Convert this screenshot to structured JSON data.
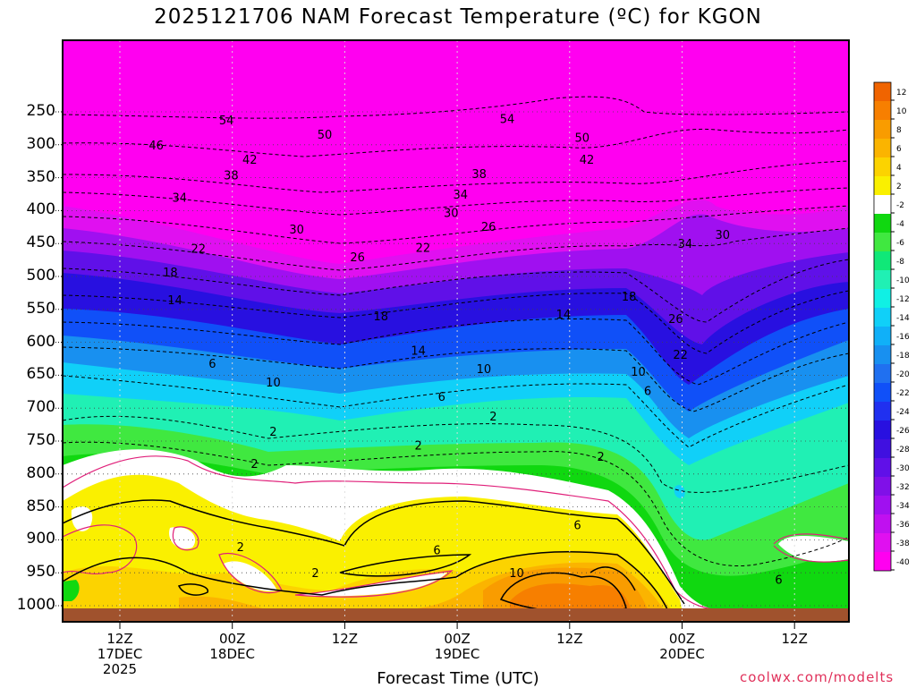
{
  "title": "2025121706 NAM Forecast Temperature (ºC) for KGON",
  "xlabel": "Forecast Time (UTC)",
  "credit": "coolwx.com/modelts",
  "chart_data": {
    "type": "contour",
    "title": "2025121706 NAM Forecast Temperature (ºC) for KGON",
    "xlabel": "Forecast Time (UTC)",
    "ylabel": "",
    "y_axis": "pressure (hPa), inverted",
    "yticks": [
      250,
      300,
      350,
      400,
      450,
      500,
      550,
      600,
      650,
      700,
      750,
      800,
      850,
      900,
      950,
      1000
    ],
    "xticks": [
      {
        "label": "12Z",
        "sub": [
          "17DEC",
          "2025"
        ]
      },
      {
        "label": "00Z",
        "sub": [
          "18DEC"
        ]
      },
      {
        "label": "12Z",
        "sub": []
      },
      {
        "label": "00Z",
        "sub": [
          "19DEC"
        ]
      },
      {
        "label": "12Z",
        "sub": []
      },
      {
        "label": "00Z",
        "sub": [
          "20DEC"
        ]
      },
      {
        "label": "12Z",
        "sub": []
      }
    ],
    "colorbar_labels": [
      "12",
      "10",
      "8",
      "6",
      "4",
      "2",
      "-2",
      "-4",
      "-6",
      "-8",
      "-10",
      "-12",
      "-14",
      "-16",
      "-18",
      "-20",
      "-22",
      "-24",
      "-26",
      "-28",
      "-30",
      "-32",
      "-34",
      "-36",
      "-38",
      "-40"
    ],
    "colorbar_colors": [
      "#f06400",
      "#f77f00",
      "#f99c00",
      "#fbb400",
      "#fcd300",
      "#faf000",
      "#ffffff",
      "#10d810",
      "#40e840",
      "#10e878",
      "#20f0b4",
      "#10f0e4",
      "#10d0f8",
      "#10b0f8",
      "#1890f0",
      "#2070f0",
      "#1050f8",
      "#2030f0",
      "#2810e0",
      "#4010e0",
      "#6010e8",
      "#8010e8",
      "#a010f0",
      "#c010f0",
      "#e010f0",
      "#ff00f0"
    ],
    "contours": [
      {
        "level": -54,
        "labels": [
          {
            "t": 17.5,
            "p": 262
          },
          {
            "t": 47.5,
            "p": 260
          }
        ]
      },
      {
        "level": -50,
        "labels": [
          {
            "t": 28,
            "p": 284
          },
          {
            "t": 55.5,
            "p": 289
          }
        ]
      },
      {
        "level": -46,
        "labels": [
          {
            "t": 10,
            "p": 300
          }
        ]
      },
      {
        "level": -42,
        "labels": [
          {
            "t": 20,
            "p": 322
          },
          {
            "t": 56,
            "p": 322
          }
        ]
      },
      {
        "level": -38,
        "labels": [
          {
            "t": 18,
            "p": 346
          },
          {
            "t": 44.5,
            "p": 344
          }
        ]
      },
      {
        "level": -34,
        "labels": [
          {
            "t": 12.5,
            "p": 380
          },
          {
            "t": 42.5,
            "p": 375
          },
          {
            "t": 66.5,
            "p": 450
          }
        ]
      },
      {
        "level": -30,
        "labels": [
          {
            "t": 25,
            "p": 428
          },
          {
            "t": 41.5,
            "p": 403
          },
          {
            "t": 70.5,
            "p": 436
          }
        ]
      },
      {
        "level": -26,
        "labels": [
          {
            "t": 31.5,
            "p": 470
          },
          {
            "t": 45.5,
            "p": 424
          },
          {
            "t": 65.5,
            "p": 564
          }
        ]
      },
      {
        "level": -22,
        "labels": [
          {
            "t": 14.5,
            "p": 457
          },
          {
            "t": 38.5,
            "p": 456
          },
          {
            "t": 66,
            "p": 618
          }
        ]
      },
      {
        "level": -18,
        "labels": [
          {
            "t": 11.5,
            "p": 493
          },
          {
            "t": 34,
            "p": 560
          },
          {
            "t": 60.5,
            "p": 530
          }
        ]
      },
      {
        "level": -14,
        "labels": [
          {
            "t": 12,
            "p": 535
          },
          {
            "t": 38,
            "p": 612
          },
          {
            "t": 53.5,
            "p": 557
          }
        ]
      },
      {
        "level": -10,
        "labels": [
          {
            "t": 22.5,
            "p": 660
          },
          {
            "t": 45,
            "p": 640
          },
          {
            "t": 61.5,
            "p": 644
          }
        ]
      },
      {
        "level": -6,
        "labels": [
          {
            "t": 16,
            "p": 632
          },
          {
            "t": 40.5,
            "p": 682
          },
          {
            "t": 62.5,
            "p": 673
          },
          {
            "t": 76.5,
            "p": 960
          }
        ]
      },
      {
        "level": -2,
        "labels": [
          {
            "t": 46,
            "p": 712
          },
          {
            "t": 22.5,
            "p": 735
          },
          {
            "t": 20.5,
            "p": 784
          },
          {
            "t": 38,
            "p": 756
          },
          {
            "t": 57.5,
            "p": 773
          },
          {
            "t": 27,
            "p": 950
          },
          {
            "t": 19,
            "p": 910
          }
        ]
      },
      {
        "level": 6,
        "labels": [
          {
            "t": 40,
            "p": 915
          },
          {
            "t": 55,
            "p": 877
          }
        ]
      },
      {
        "level": 10,
        "labels": [
          {
            "t": 48.5,
            "p": 950
          }
        ]
      }
    ]
  }
}
